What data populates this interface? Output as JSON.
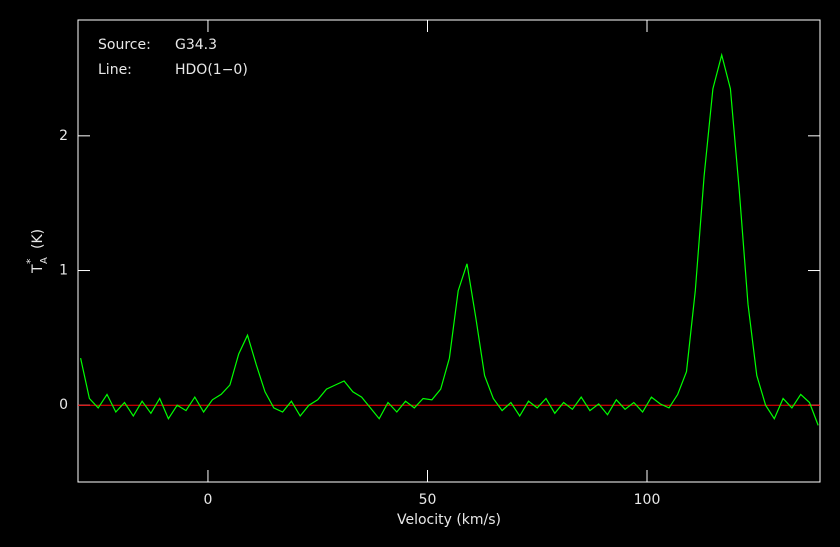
{
  "chart_data": {
    "type": "line",
    "annotations": [
      {
        "label": "Source:",
        "text": "G34.3"
      },
      {
        "label": "Line:",
        "text": "HDO(1−0)"
      }
    ],
    "xlabel": "Velocity (km/s)",
    "ylabel": {
      "symbol": "T",
      "superscript": "*",
      "subscript": "A",
      "unit": "(K)"
    },
    "x": [
      -29,
      -27,
      -25,
      -23,
      -21,
      -19,
      -17,
      -15,
      -13,
      -11,
      -9,
      -7,
      -5,
      -3,
      -1,
      1,
      3,
      5,
      7,
      9,
      11,
      13,
      15,
      17,
      19,
      21,
      23,
      25,
      27,
      29,
      31,
      33,
      35,
      37,
      39,
      41,
      43,
      45,
      47,
      49,
      51,
      53,
      55,
      57,
      59,
      61,
      63,
      65,
      67,
      69,
      71,
      73,
      75,
      77,
      79,
      81,
      83,
      85,
      87,
      89,
      91,
      93,
      95,
      97,
      99,
      101,
      103,
      105,
      107,
      109,
      111,
      113,
      115,
      117,
      119,
      121,
      123,
      125,
      127,
      129,
      131,
      133,
      135,
      137,
      139
    ],
    "series": [
      {
        "color": "#00ff00",
        "values": [
          0.35,
          0.05,
          -0.02,
          0.08,
          -0.05,
          0.02,
          -0.08,
          0.03,
          -0.06,
          0.05,
          -0.1,
          0.0,
          -0.04,
          0.06,
          -0.05,
          0.04,
          0.08,
          0.15,
          0.38,
          0.52,
          0.3,
          0.1,
          -0.02,
          -0.05,
          0.03,
          -0.08,
          0.0,
          0.04,
          0.12,
          0.15,
          0.18,
          0.1,
          0.06,
          -0.02,
          -0.1,
          0.02,
          -0.05,
          0.03,
          -0.02,
          0.05,
          0.04,
          0.12,
          0.35,
          0.85,
          1.05,
          0.65,
          0.22,
          0.05,
          -0.04,
          0.02,
          -0.08,
          0.03,
          -0.02,
          0.05,
          -0.06,
          0.02,
          -0.03,
          0.06,
          -0.04,
          0.01,
          -0.07,
          0.04,
          -0.03,
          0.02,
          -0.05,
          0.06,
          0.01,
          -0.02,
          0.08,
          0.25,
          0.85,
          1.7,
          2.35,
          2.6,
          2.35,
          1.6,
          0.75,
          0.22,
          0.0,
          -0.1,
          0.05,
          -0.02,
          0.08,
          0.02,
          -0.15
        ]
      }
    ],
    "baseline": 0,
    "baseline_color": "#ff0000",
    "xlim": [
      -29.6,
      139.4
    ],
    "xticks": [
      0,
      50,
      100
    ],
    "ylim": [
      -0.57,
      2.86
    ],
    "yticks": [
      0,
      1,
      2
    ]
  }
}
